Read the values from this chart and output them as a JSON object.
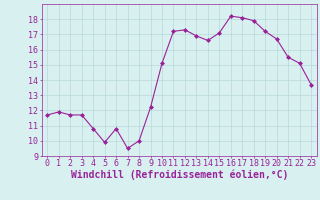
{
  "hours": [
    0,
    1,
    2,
    3,
    4,
    5,
    6,
    7,
    8,
    9,
    10,
    11,
    12,
    13,
    14,
    15,
    16,
    17,
    18,
    19,
    20,
    21,
    22,
    23
  ],
  "values": [
    11.7,
    11.9,
    11.7,
    11.7,
    10.8,
    9.9,
    10.8,
    9.5,
    10.0,
    12.2,
    15.1,
    17.2,
    17.3,
    16.9,
    16.6,
    17.1,
    18.2,
    18.1,
    17.9,
    17.2,
    16.7,
    15.5,
    15.1,
    13.7
  ],
  "line_color": "#992299",
  "marker": "D",
  "marker_size": 2,
  "bg_color": "#d8f0f0",
  "grid_color": "#b8d8d8",
  "xlabel": "Windchill (Refroidissement éolien,°C)",
  "ylim": [
    9,
    19
  ],
  "xlim": [
    -0.5,
    23.5
  ],
  "yticks": [
    9,
    10,
    11,
    12,
    13,
    14,
    15,
    16,
    17,
    18
  ],
  "xtick_labels": [
    "0",
    "1",
    "2",
    "3",
    "4",
    "5",
    "6",
    "7",
    "8",
    "9",
    "10",
    "11",
    "12",
    "13",
    "14",
    "15",
    "16",
    "17",
    "18",
    "19",
    "20",
    "21",
    "22",
    "23"
  ],
  "tick_color": "#992299",
  "label_color": "#992299",
  "xlabel_fontsize": 7,
  "tick_fontsize": 6,
  "line_width": 0.8,
  "spine_color": "#992299",
  "spine_linewidth": 0.5
}
